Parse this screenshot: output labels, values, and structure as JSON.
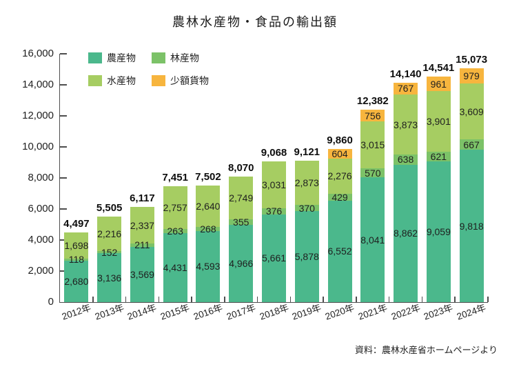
{
  "title": "農林水産物・食品の輸出額",
  "source": "資料：農林水産省ホームページより",
  "colors": {
    "agri": "#4bb88c",
    "forest": "#7cc268",
    "marine": "#a6cd62",
    "parcel": "#f7b53e",
    "axis": "#4d4d4d",
    "label_text": "#1f1f1f",
    "total_text": "#0d0d0d"
  },
  "chart_data": {
    "type": "bar",
    "stacked": true,
    "title": "農林水産物・食品の輸出額",
    "categories": [
      "2012年",
      "2013年",
      "2014年",
      "2015年",
      "2016年",
      "2017年",
      "2018年",
      "2019年",
      "2020年",
      "2021年",
      "2022年",
      "2023年",
      "2024年"
    ],
    "series": [
      {
        "name": "農産物",
        "color": "agri",
        "values": [
          2680,
          3136,
          3569,
          4431,
          4593,
          4966,
          5661,
          5878,
          6552,
          8041,
          8862,
          9059,
          9818
        ]
      },
      {
        "name": "林産物",
        "color": "forest",
        "values": [
          118,
          152,
          211,
          263,
          268,
          355,
          376,
          370,
          429,
          570,
          638,
          621,
          667
        ]
      },
      {
        "name": "水産物",
        "color": "marine",
        "values": [
          1698,
          2216,
          2337,
          2757,
          2640,
          2749,
          3031,
          2873,
          2276,
          3015,
          3873,
          3901,
          3609
        ]
      },
      {
        "name": "少額貨物",
        "color": "parcel",
        "values": [
          null,
          null,
          null,
          null,
          null,
          null,
          null,
          null,
          604,
          756,
          767,
          961,
          979
        ]
      }
    ],
    "totals": [
      4497,
      5505,
      6117,
      7451,
      7502,
      8070,
      9068,
      9121,
      9860,
      12382,
      14140,
      14541,
      15073
    ],
    "ylim": [
      0,
      16000
    ],
    "ytick_step": 2000,
    "grid": false,
    "legend_position": "top-left-inside"
  }
}
